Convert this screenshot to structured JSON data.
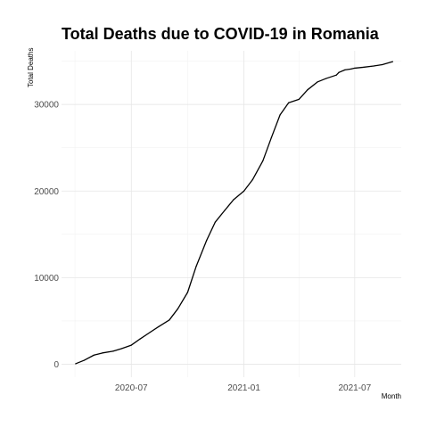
{
  "chart_data": {
    "type": "line",
    "title": "Total Deaths due to COVID-19 in Romania",
    "xlabel": "Month",
    "ylabel": "Total Deaths",
    "x_ticks": [
      "2020-07",
      "2021-01",
      "2021-07"
    ],
    "y_ticks": [
      "0",
      "10000",
      "20000",
      "30000"
    ],
    "ylim": [
      -1500,
      36200
    ],
    "xlim": [
      "2020-03-09",
      "2021-09-15"
    ],
    "grid": true,
    "legend": "none",
    "series": [
      {
        "x": [
          "2020-04-01",
          "2020-04-15",
          "2020-05-01",
          "2020-05-15",
          "2020-06-01",
          "2020-06-15",
          "2020-07-01",
          "2020-07-15",
          "2020-08-01",
          "2020-08-15",
          "2020-09-01",
          "2020-09-15",
          "2020-10-01",
          "2020-10-15",
          "2020-11-01",
          "2020-11-15",
          "2020-12-01",
          "2020-12-15",
          "2021-01-01",
          "2021-01-15",
          "2021-02-01",
          "2021-02-15",
          "2021-03-01",
          "2021-03-15",
          "2021-04-01",
          "2021-04-15",
          "2021-05-01",
          "2021-05-15",
          "2021-06-01",
          "2021-06-05",
          "2021-06-15",
          "2021-06-25",
          "2021-07-01",
          "2021-07-15",
          "2021-08-01",
          "2021-08-15",
          "2021-09-01"
        ],
        "y": [
          50,
          450,
          1050,
          1300,
          1500,
          1800,
          2200,
          2900,
          3700,
          4350,
          5100,
          6400,
          8300,
          11300,
          14300,
          16400,
          17800,
          19000,
          20000,
          21300,
          23500,
          26200,
          28800,
          30200,
          30600,
          31700,
          32600,
          33000,
          33400,
          33700,
          34000,
          34100,
          34200,
          34300,
          34450,
          34600,
          34950
        ]
      }
    ]
  }
}
